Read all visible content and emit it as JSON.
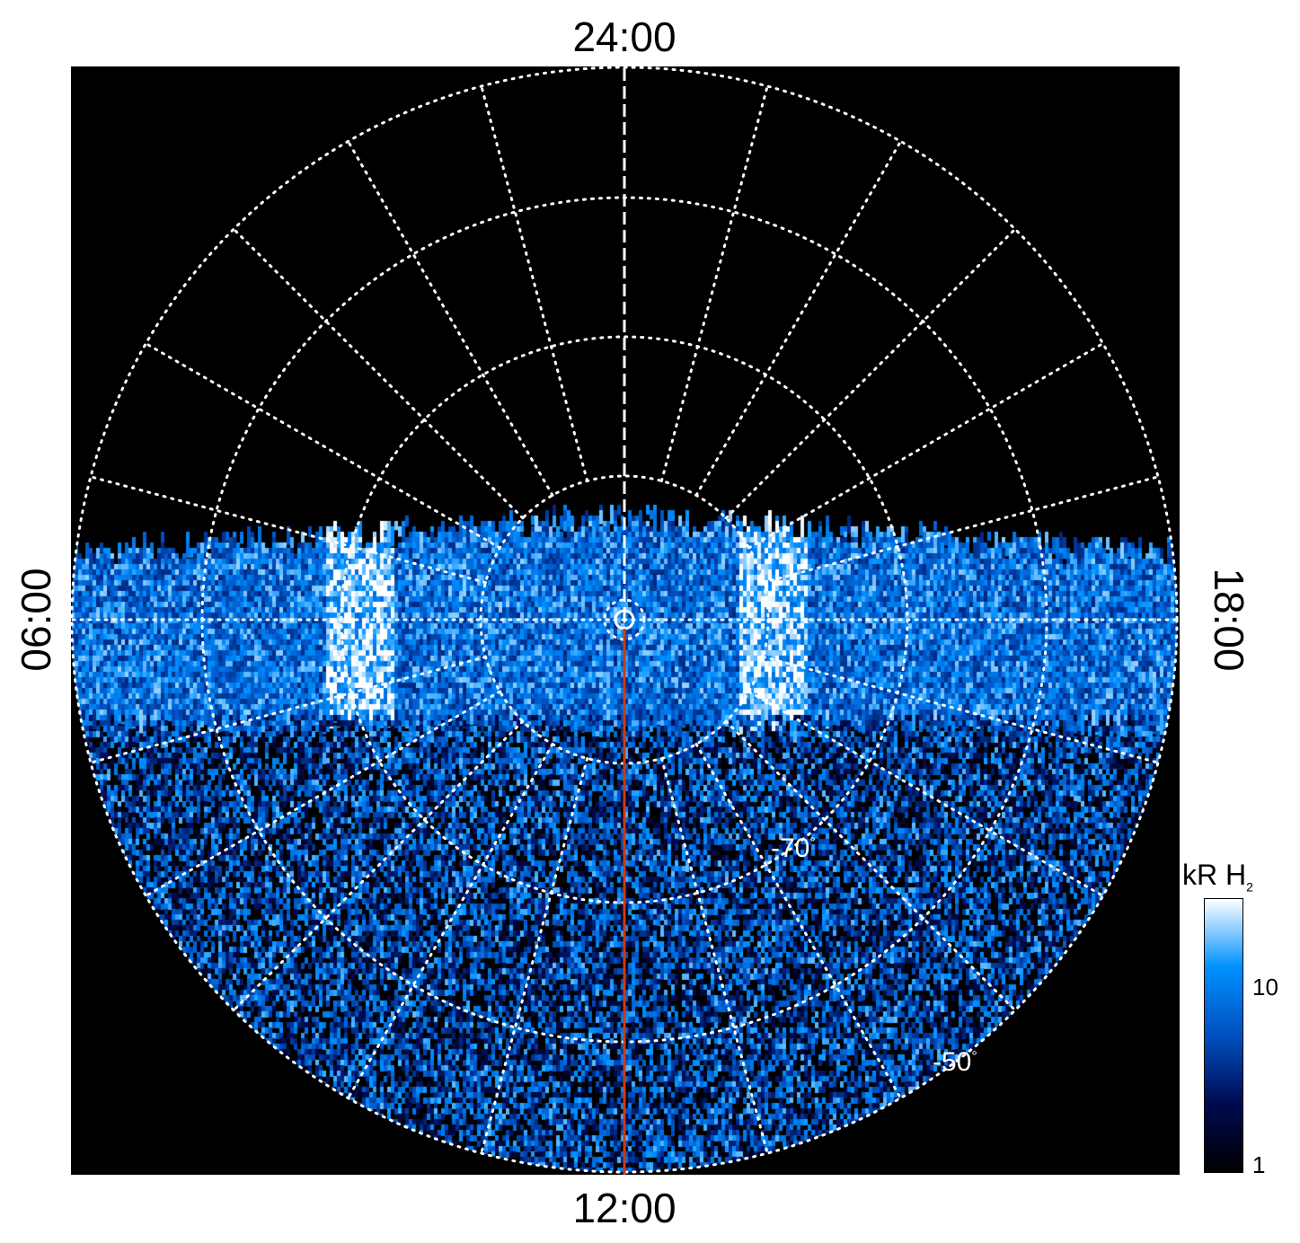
{
  "chart_data": {
    "type": "heatmap",
    "projection": "polar",
    "local_time_labels": {
      "top": "24:00",
      "bottom": "12:00",
      "left": "06:00",
      "right": "18:00"
    },
    "latitude_labels": [
      "-70",
      "-50"
    ],
    "latitude_unit": "°",
    "latitude_rings": [
      -80,
      -70,
      -60,
      -50
    ],
    "meridian_spacing_hours": 1,
    "grid": true,
    "highlight_meridian": {
      "local_time": "12:00",
      "color": "#d03a10"
    },
    "colorbar": {
      "title": "kR H",
      "title_subscript": "2",
      "scale": "log",
      "range": [
        1,
        30
      ],
      "ticks": [
        "10",
        "1"
      ],
      "colors": [
        "#000000",
        "#000a50",
        "#0050c0",
        "#0090ff",
        "#ffffff"
      ]
    },
    "background": "#000000"
  }
}
